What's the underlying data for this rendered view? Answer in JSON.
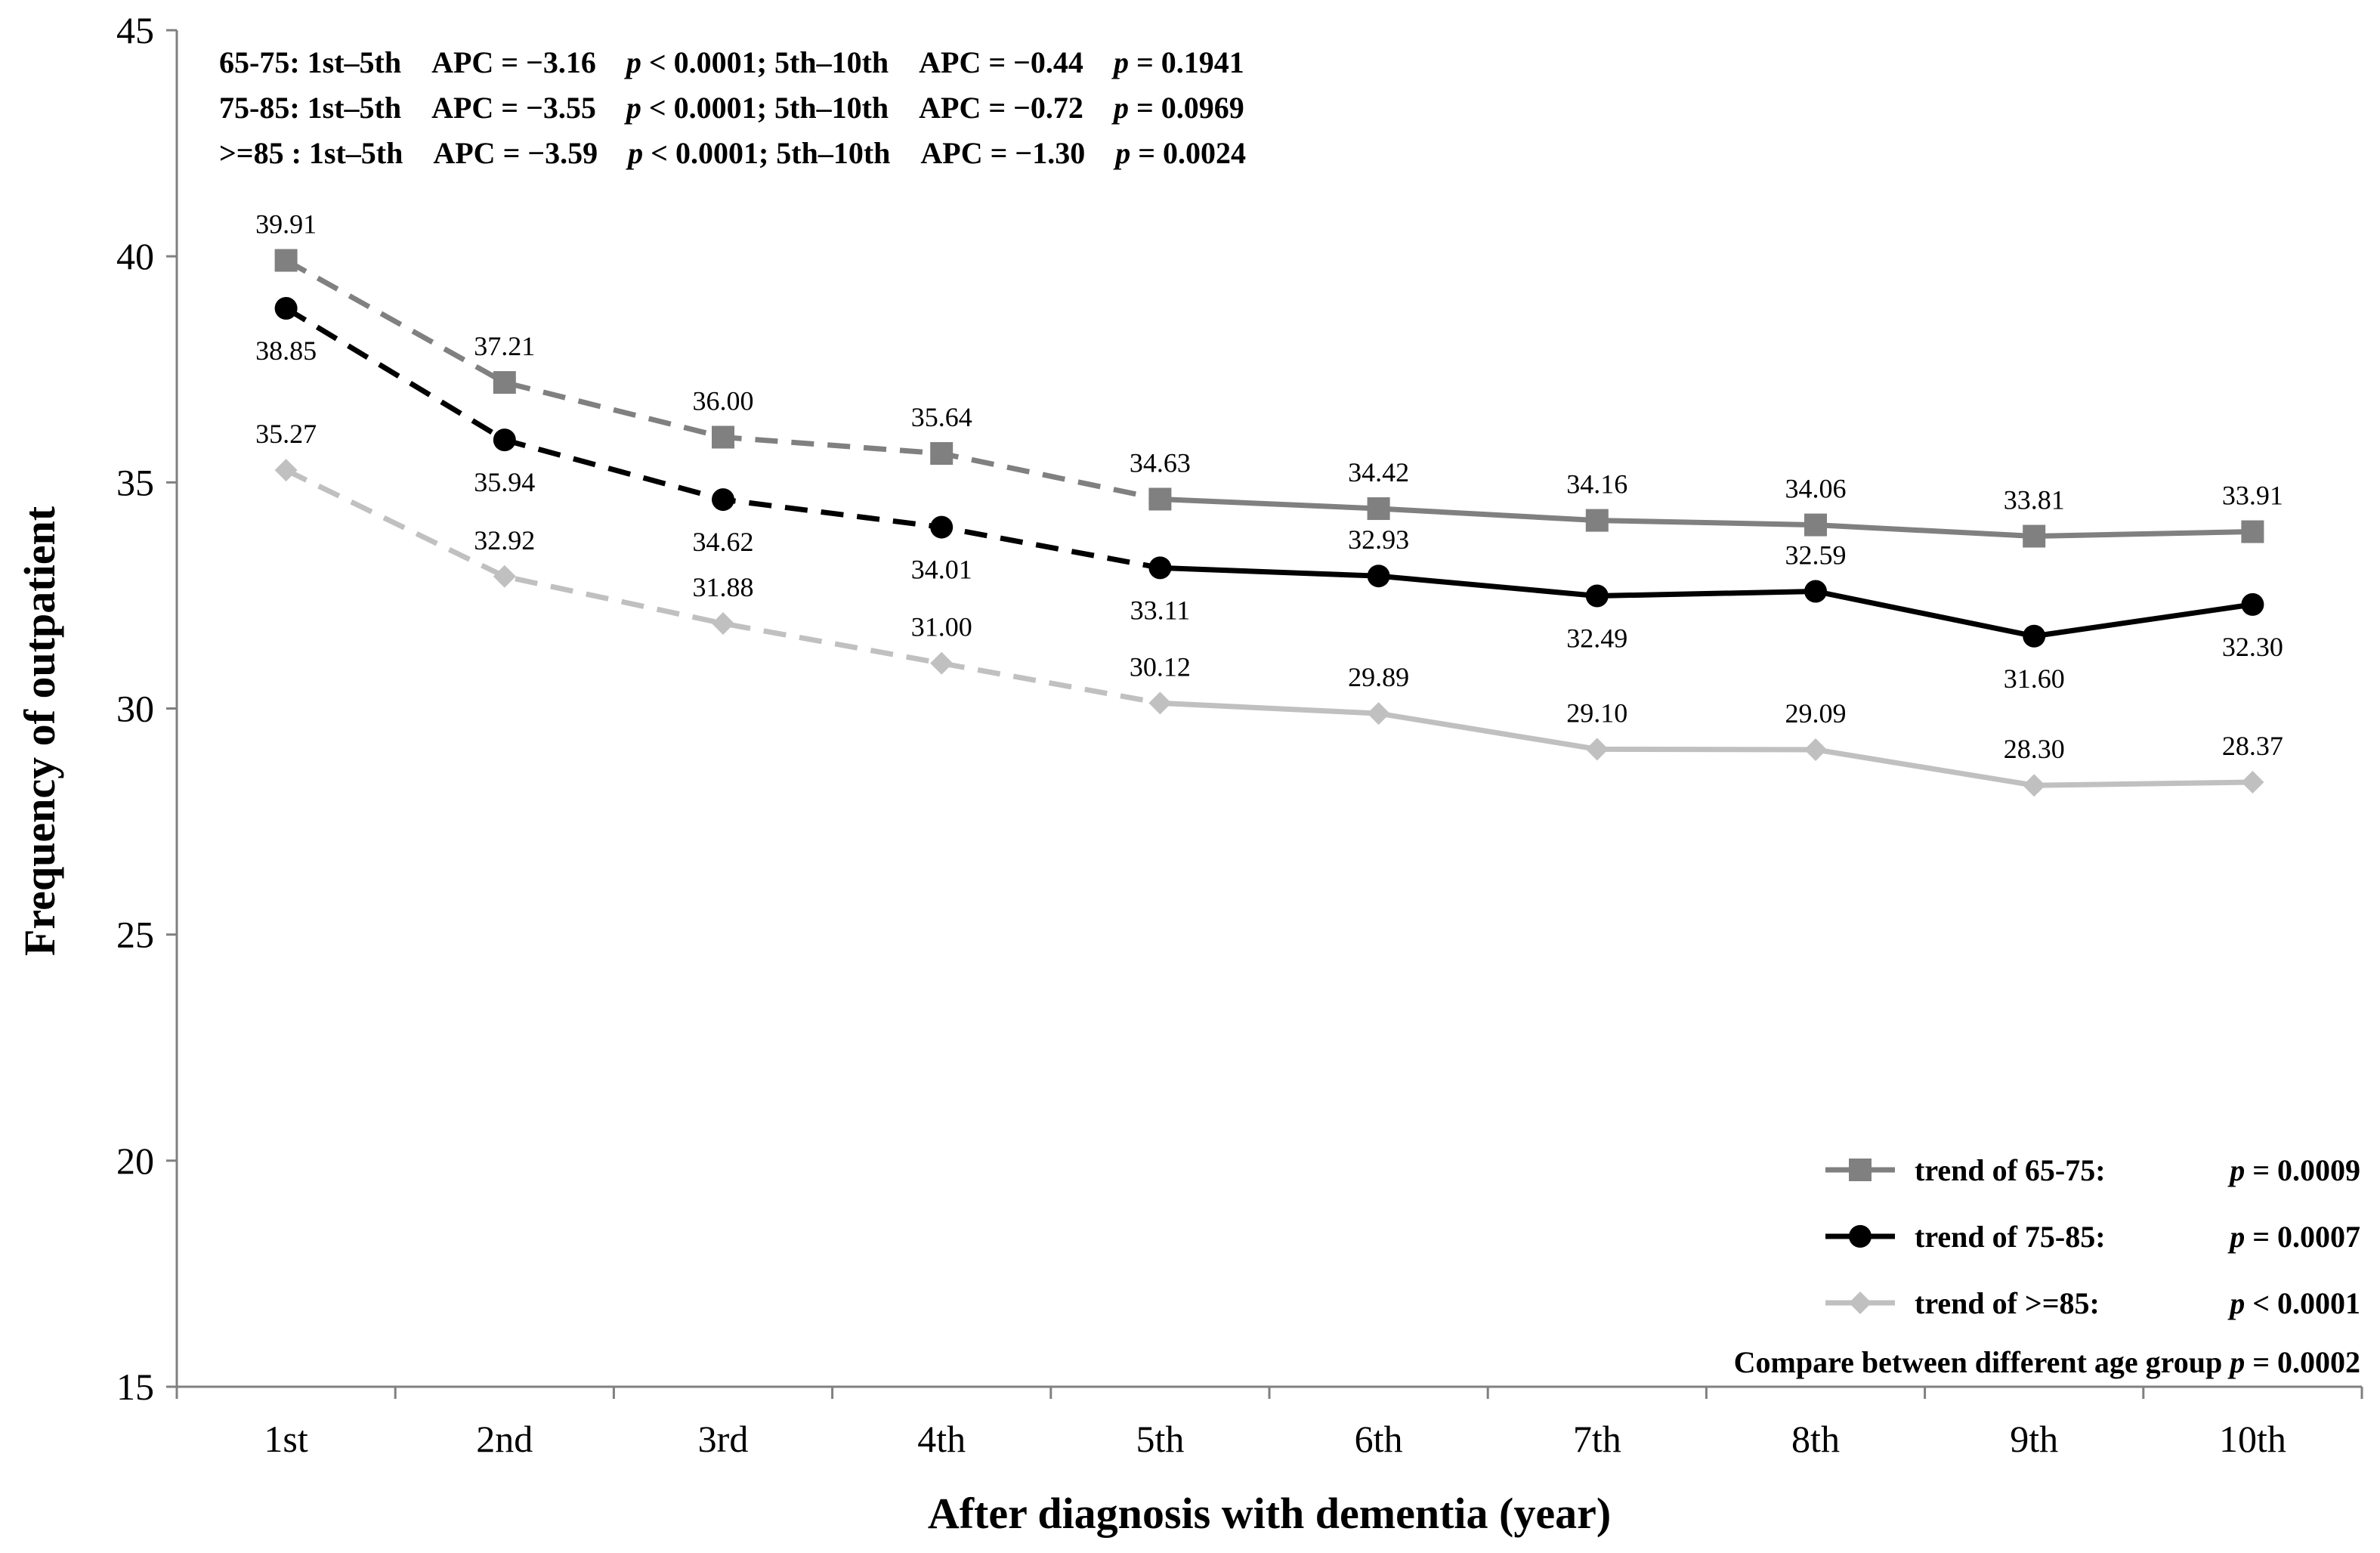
{
  "chart_data": {
    "type": "line",
    "ylabel": "Frequency of outpatient",
    "xlabel": "After diagnosis with dementia (year)",
    "ylim": [
      15,
      45
    ],
    "yticks": [
      15,
      20,
      25,
      30,
      35,
      40,
      45
    ],
    "categories": [
      "1st",
      "2nd",
      "3rd",
      "4th",
      "5th",
      "6th",
      "7th",
      "8th",
      "9th",
      "10th"
    ],
    "series": [
      {
        "name": "65-75",
        "color": "#808080",
        "marker": "square",
        "values": [
          39.91,
          37.21,
          36.0,
          35.64,
          34.63,
          34.42,
          34.16,
          34.06,
          33.81,
          33.91
        ],
        "labels": [
          "39.91",
          "37.21",
          "36.00",
          "35.64",
          "34.63",
          "34.42",
          "34.16",
          "34.06",
          "33.81",
          "33.91"
        ],
        "label_side": [
          "above",
          "above",
          "above",
          "above",
          "above",
          "above",
          "above",
          "above",
          "above",
          "above"
        ],
        "dashed_until_index": 4
      },
      {
        "name": "75-85",
        "color": "#000000",
        "marker": "circle",
        "values": [
          38.85,
          35.94,
          34.62,
          34.01,
          33.11,
          32.93,
          32.49,
          32.59,
          31.6,
          32.3
        ],
        "labels": [
          "38.85",
          "35.94",
          "34.62",
          "34.01",
          "33.11",
          "32.93",
          "32.49",
          "32.59",
          "31.60",
          "32.30"
        ],
        "label_side": [
          "below",
          "below",
          "below",
          "below",
          "below",
          "above",
          "below",
          "above",
          "below",
          "below"
        ],
        "dashed_until_index": 4
      },
      {
        "name": ">=85",
        "color": "#c0c0c0",
        "marker": "diamond",
        "values": [
          35.27,
          32.92,
          31.88,
          31.0,
          30.12,
          29.89,
          29.1,
          29.09,
          28.3,
          28.37
        ],
        "labels": [
          "35.27",
          "32.92",
          "31.88",
          "31.00",
          "30.12",
          "29.89",
          "29.10",
          "29.09",
          "28.30",
          "28.37"
        ],
        "label_side": [
          "above",
          "above",
          "above",
          "above",
          "above",
          "above",
          "above",
          "above",
          "above",
          "above"
        ],
        "dashed_until_index": 4
      }
    ],
    "annotations": [
      {
        "group": "65-75:",
        "segment1": "1st–5th",
        "apc1": "APC = −3.16",
        "p1": "< 0.0001;",
        "segment2": "5th–10th",
        "apc2": "APC = −0.44",
        "p2": "= 0.1941"
      },
      {
        "group": "75-85:",
        "segment1": "1st–5th",
        "apc1": "APC = −3.55",
        "p1": "< 0.0001;",
        "segment2": "5th–10th",
        "apc2": "APC = −0.72",
        "p2": "= 0.0969"
      },
      {
        "group": ">=85 :",
        "segment1": "1st–5th",
        "apc1": "APC = −3.59",
        "p1": "< 0.0001;",
        "segment2": "5th–10th",
        "apc2": "APC = −1.30",
        "p2": "= 0.0024"
      }
    ],
    "p_symbol": "p",
    "legend": {
      "position": "bottom-right",
      "items": [
        {
          "series": "65-75",
          "label": "trend of 65-75:",
          "p": "= 0.0009"
        },
        {
          "series": "75-85",
          "label": "trend of 75-85:",
          "p": "= 0.0007"
        },
        {
          "series": ">=85",
          "label": "trend of >=85:",
          "p": "< 0.0001"
        }
      ],
      "compare_label": "Compare between different age group",
      "compare_p": "= 0.0002"
    }
  }
}
